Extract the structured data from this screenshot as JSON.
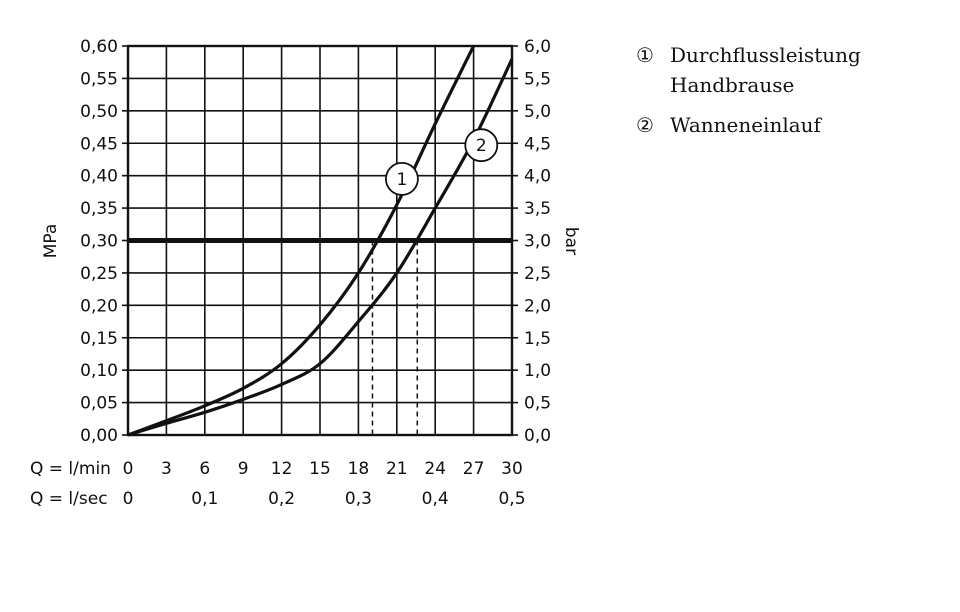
{
  "chart_data": {
    "type": "line",
    "x": [
      0,
      3,
      6,
      9,
      12,
      15,
      18,
      21,
      24,
      27,
      30
    ],
    "x_unit_label": "Q = l/min",
    "x_secondary_label": "Q = l/sec",
    "x_secondary_ticks": [
      "0",
      "0,1",
      "0,2",
      "0,3",
      "0,4",
      "0,5"
    ],
    "xlim": [
      0,
      30
    ],
    "ylim": [
      0,
      0.6
    ],
    "left_axis_label": "MPa",
    "right_axis_label": "bar",
    "left_ticks": [
      "0,00",
      "0,05",
      "0,10",
      "0,15",
      "0,20",
      "0,25",
      "0,30",
      "0,35",
      "0,40",
      "0,45",
      "0,50",
      "0,55",
      "0,60"
    ],
    "right_ticks": [
      "0,0",
      "0,5",
      "1,0",
      "1,5",
      "2,0",
      "2,5",
      "3,0",
      "3,5",
      "4,0",
      "4,5",
      "5,0",
      "5,5",
      "6,0"
    ],
    "x_ticks": [
      "0",
      "3",
      "6",
      "9",
      "12",
      "15",
      "18",
      "21",
      "24",
      "27",
      "30"
    ],
    "grid": true,
    "reference_line": {
      "y": 0.3
    },
    "drop_lines_x": [
      19.1,
      22.6
    ],
    "series": [
      {
        "marker": "1",
        "x": [
          0,
          3,
          6,
          9,
          12,
          15,
          18,
          21,
          24,
          27
        ],
        "values": [
          0.0,
          0.022,
          0.045,
          0.072,
          0.11,
          0.17,
          0.25,
          0.355,
          0.48,
          0.6
        ]
      },
      {
        "marker": "2",
        "x": [
          0,
          3,
          6,
          9,
          12,
          15,
          18,
          21,
          24,
          27,
          30
        ],
        "values": [
          0.0,
          0.018,
          0.035,
          0.055,
          0.078,
          0.11,
          0.175,
          0.25,
          0.35,
          0.455,
          0.58
        ]
      }
    ]
  },
  "legend": {
    "items": [
      {
        "num": "①",
        "lines": [
          "Durchflussleistung",
          "Handbrause"
        ]
      },
      {
        "num": "②",
        "lines": [
          "Wanneneinlauf"
        ]
      }
    ]
  }
}
